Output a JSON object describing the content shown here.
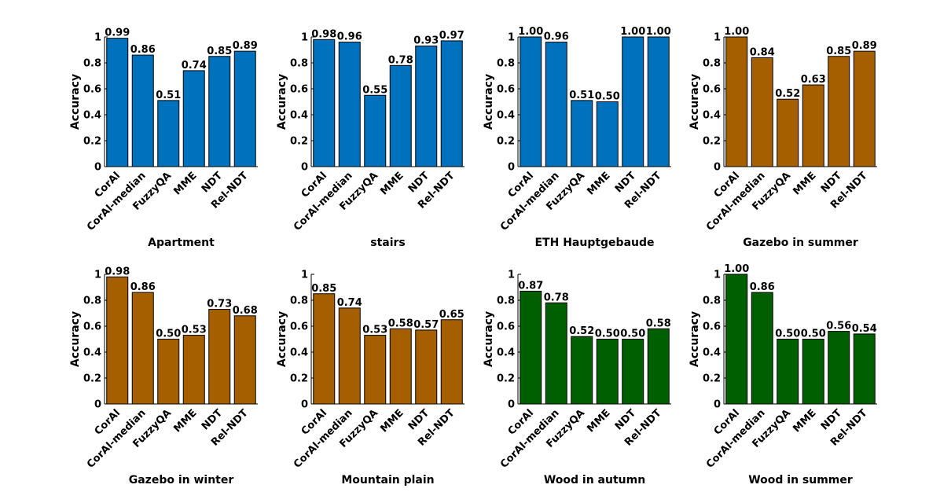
{
  "figure": {
    "ylabel": "Accuracy",
    "categories": [
      "CorAl",
      "CorAl-median",
      "FuzzyQA",
      "MME",
      "NDT",
      "Rel-NDT"
    ]
  },
  "colors": {
    "blue": "#0072bd",
    "brown": "#a55f00",
    "green": "#005f00",
    "bar_edge": "#000000"
  },
  "chart_data": [
    {
      "type": "bar",
      "title": "Apartment",
      "ylabel": "Accuracy",
      "ylim": [
        0,
        1
      ],
      "yticks": [
        "0",
        "0.2",
        "0.4",
        "0.6",
        "0.8",
        "1"
      ],
      "color": "#0072bd",
      "categories": [
        "CorAl",
        "CorAl-median",
        "FuzzyQA",
        "MME",
        "NDT",
        "Rel-NDT"
      ],
      "values": [
        0.99,
        0.86,
        0.51,
        0.74,
        0.85,
        0.89
      ],
      "value_labels": [
        "0.99",
        "0.86",
        "0.51",
        "0.74",
        "0.85",
        "0.89"
      ]
    },
    {
      "type": "bar",
      "title": "stairs",
      "ylabel": "Accuracy",
      "ylim": [
        0,
        1
      ],
      "yticks": [
        "0",
        "0.2",
        "0.4",
        "0.6",
        "0.8",
        "1"
      ],
      "color": "#0072bd",
      "categories": [
        "CorAl",
        "CorAl-median",
        "FuzzyQA",
        "MME",
        "NDT",
        "Rel-NDT"
      ],
      "values": [
        0.98,
        0.96,
        0.55,
        0.78,
        0.93,
        0.97
      ],
      "value_labels": [
        "0.98",
        "0.96",
        "0.55",
        "0.78",
        "0.93",
        "0.97"
      ]
    },
    {
      "type": "bar",
      "title": "ETH Hauptgebaude",
      "ylabel": "Accuracy",
      "ylim": [
        0,
        1
      ],
      "yticks": [
        "0",
        "0.2",
        "0.4",
        "0.6",
        "0.8",
        "1"
      ],
      "color": "#0072bd",
      "categories": [
        "CorAl",
        "CorAl-median",
        "FuzzyQA",
        "MME",
        "NDT",
        "Rel-NDT"
      ],
      "values": [
        1.0,
        0.96,
        0.51,
        0.5,
        1.0,
        1.0
      ],
      "value_labels": [
        "1.00",
        "0.96",
        "0.51",
        "0.50",
        "1.00",
        "1.00"
      ]
    },
    {
      "type": "bar",
      "title": "Gazebo in summer",
      "ylabel": "Accuracy",
      "ylim": [
        0,
        1
      ],
      "yticks": [
        "0",
        "0.2",
        "0.4",
        "0.6",
        "0.8",
        "1"
      ],
      "color": "#a55f00",
      "categories": [
        "CorAl",
        "CorAl-median",
        "FuzzyQA",
        "MME",
        "NDT",
        "Rel-NDT"
      ],
      "values": [
        1.0,
        0.84,
        0.52,
        0.63,
        0.85,
        0.89
      ],
      "value_labels": [
        "1.00",
        "0.84",
        "0.52",
        "0.63",
        "0.85",
        "0.89"
      ]
    },
    {
      "type": "bar",
      "title": "Gazebo in winter",
      "ylabel": "Accuracy",
      "ylim": [
        0,
        1
      ],
      "yticks": [
        "0",
        "0.2",
        "0.4",
        "0.6",
        "0.8",
        "1"
      ],
      "color": "#a55f00",
      "categories": [
        "CorAl",
        "CorAl-median",
        "FuzzyQA",
        "MME",
        "NDT",
        "Rel-NDT"
      ],
      "values": [
        0.98,
        0.86,
        0.5,
        0.53,
        0.73,
        0.68
      ],
      "value_labels": [
        "0.98",
        "0.86",
        "0.50",
        "0.53",
        "0.73",
        "0.68"
      ]
    },
    {
      "type": "bar",
      "title": "Mountain plain",
      "ylabel": "Accuracy",
      "ylim": [
        0,
        1
      ],
      "yticks": [
        "0",
        "0.2",
        "0.4",
        "0.6",
        "0.8",
        "1"
      ],
      "color": "#a55f00",
      "categories": [
        "CorAl",
        "CorAl-median",
        "FuzzyQA",
        "MME",
        "NDT",
        "Rel-NDT"
      ],
      "values": [
        0.85,
        0.74,
        0.53,
        0.58,
        0.57,
        0.65
      ],
      "value_labels": [
        "0.85",
        "0.74",
        "0.53",
        "0.58",
        "0.57",
        "0.65"
      ]
    },
    {
      "type": "bar",
      "title": "Wood in autumn",
      "ylabel": "Accuracy",
      "ylim": [
        0,
        1
      ],
      "yticks": [
        "0",
        "0.2",
        "0.4",
        "0.6",
        "0.8",
        "1"
      ],
      "color": "#005f00",
      "categories": [
        "CorAl",
        "CorAl-median",
        "FuzzyQA",
        "MME",
        "NDT",
        "Rel-NDT"
      ],
      "values": [
        0.87,
        0.78,
        0.52,
        0.5,
        0.5,
        0.58
      ],
      "value_labels": [
        "0.87",
        "0.78",
        "0.52",
        "0.50",
        "0.50",
        "0.58"
      ]
    },
    {
      "type": "bar",
      "title": "Wood in summer",
      "ylabel": "Accuracy",
      "ylim": [
        0,
        1
      ],
      "yticks": [
        "0",
        "0.2",
        "0.4",
        "0.6",
        "0.8",
        "1"
      ],
      "color": "#005f00",
      "categories": [
        "CorAl",
        "CorAl-median",
        "FuzzyQA",
        "MME",
        "NDT",
        "Rel-NDT"
      ],
      "values": [
        1.0,
        0.86,
        0.5,
        0.5,
        0.56,
        0.54
      ],
      "value_labels": [
        "1.00",
        "0.86",
        "0.50",
        "0.50",
        "0.56",
        "0.54"
      ]
    }
  ]
}
